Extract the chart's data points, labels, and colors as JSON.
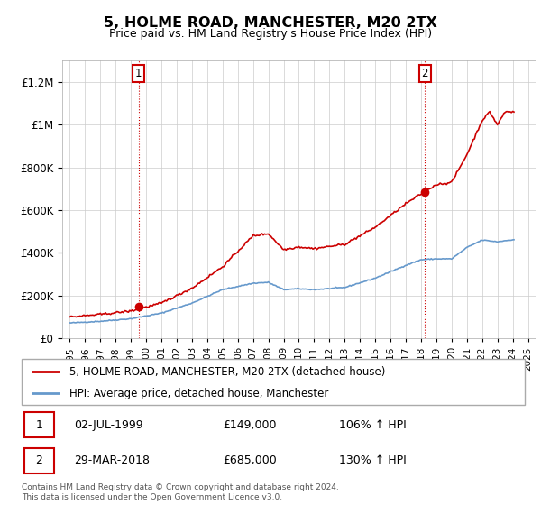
{
  "title": "5, HOLME ROAD, MANCHESTER, M20 2TX",
  "subtitle": "Price paid vs. HM Land Registry's House Price Index (HPI)",
  "ytick_values": [
    0,
    200000,
    400000,
    600000,
    800000,
    1000000,
    1200000
  ],
  "ylim": [
    0,
    1300000
  ],
  "xlim_start": 1994.5,
  "xlim_end": 2025.5,
  "line_color_red": "#cc0000",
  "line_color_blue": "#6699cc",
  "bg_color": "#ffffff",
  "grid_color": "#cccccc",
  "legend_label_red": "5, HOLME ROAD, MANCHESTER, M20 2TX (detached house)",
  "legend_label_blue": "HPI: Average price, detached house, Manchester",
  "transaction1_x": 1999.5,
  "transaction1_y": 149000,
  "transaction2_x": 2018.25,
  "transaction2_y": 685000,
  "annotation1_date": "02-JUL-1999",
  "annotation1_price": "£149,000",
  "annotation1_hpi": "106% ↑ HPI",
  "annotation2_date": "29-MAR-2018",
  "annotation2_price": "£685,000",
  "annotation2_hpi": "130% ↑ HPI",
  "footer": "Contains HM Land Registry data © Crown copyright and database right 2024.\nThis data is licensed under the Open Government Licence v3.0.",
  "hpi_knots_x": [
    1995,
    1997,
    1999,
    2001,
    2003,
    2005,
    2007,
    2008,
    2009,
    2010,
    2011,
    2013,
    2015,
    2017,
    2018,
    2019,
    2020,
    2021,
    2022,
    2023,
    2024
  ],
  "hpi_knots_y": [
    72000,
    80000,
    92000,
    118000,
    165000,
    228000,
    258000,
    262000,
    228000,
    232000,
    228000,
    238000,
    282000,
    342000,
    368000,
    372000,
    372000,
    425000,
    460000,
    452000,
    462000
  ],
  "price_knots_x": [
    1995,
    1997,
    1999,
    2001,
    2003,
    2005,
    2007,
    2008,
    2009,
    2010,
    2011,
    2013,
    2015,
    2017,
    2018.2,
    2019,
    2020,
    2021,
    2022,
    2022.5,
    2023,
    2023.5,
    2024
  ],
  "price_knots_y": [
    100000,
    112000,
    128000,
    165000,
    235000,
    335000,
    480000,
    490000,
    415000,
    428000,
    420000,
    440000,
    520000,
    630000,
    685000,
    720000,
    730000,
    860000,
    1020000,
    1060000,
    1000000,
    1060000,
    1060000
  ]
}
